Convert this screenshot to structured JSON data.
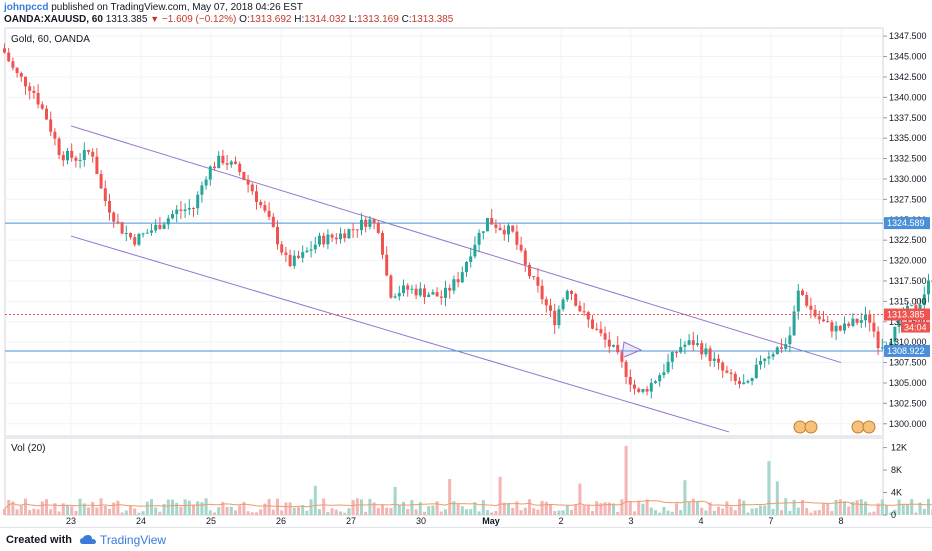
{
  "header": {
    "author": "johnpccd",
    "published": "published on TradingView.com, May 07, 2018 04:26 EST",
    "symbol": "OANDA:XAUUSD, 60",
    "last": "1313.385",
    "change": "−1.609 (−0.12%)",
    "o_label": "O:",
    "o_value": "1313.692",
    "h_label": "H:",
    "h_value": "1314.032",
    "l_label": "L:",
    "l_value": "1313.169",
    "c_label": "C:",
    "c_value": "1313.385"
  },
  "legend": {
    "main": "Gold, 60, OANDA",
    "volume": "Vol (20)"
  },
  "footer": {
    "created": "Created with",
    "brand": "TradingView"
  },
  "colors": {
    "up": "#26a69a",
    "down": "#ef5350",
    "hline": "#4a90d9",
    "channel": "#9575cd",
    "lastPrice": "#ef5350",
    "volAvg": "#ef9a6a"
  },
  "chart_data": {
    "type": "candlestick",
    "title": "Gold, 60, OANDA",
    "y_ticks": [
      "1347.500",
      "1345.000",
      "1342.500",
      "1340.000",
      "1337.500",
      "1335.000",
      "1332.500",
      "1330.000",
      "1327.500",
      "1325.000",
      "1322.500",
      "1320.000",
      "1317.500",
      "1315.000",
      "1312.500",
      "1310.000",
      "1307.500",
      "1305.000",
      "1302.500",
      "1300.000"
    ],
    "x_ticks": [
      "23",
      "24",
      "25",
      "26",
      "27",
      "30",
      "May",
      "2",
      "3",
      "4",
      "7",
      "8"
    ],
    "ylim": [
      1298.5,
      1348.5
    ],
    "horizontal_levels": [
      {
        "price": 1324.589,
        "label": "1324.589"
      },
      {
        "price": 1308.922,
        "label": "1308.922"
      }
    ],
    "last_price": {
      "price": 1313.385,
      "label": "1313.385",
      "countdown": "34:04"
    },
    "channel": {
      "upper": [
        {
          "x": 0.0,
          "y": 1336.5
        },
        {
          "x": 11.0,
          "y": 1307.5
        }
      ],
      "lower": [
        {
          "x": 0.0,
          "y": 1323.0
        },
        {
          "x": 9.4,
          "y": 1299.0
        }
      ]
    },
    "volume": {
      "title": "Vol (20)",
      "y_ticks": [
        "12K",
        "8K",
        "4K",
        "0"
      ],
      "ylim": [
        0,
        13000
      ],
      "spikes": [
        {
          "x": 3.5,
          "value": 5200
        },
        {
          "x": 4.65,
          "value": 5000
        },
        {
          "x": 7.95,
          "value": 12300
        },
        {
          "x": 8.8,
          "value": 6200
        },
        {
          "x": 9.95,
          "value": 9600
        },
        {
          "x": 10.1,
          "value": 6000
        },
        {
          "x": 6.15,
          "value": 6800
        },
        {
          "x": 5.4,
          "value": 6400
        },
        {
          "x": 7.25,
          "value": 5600
        }
      ]
    },
    "series_path": [
      {
        "x": -0.95,
        "y": 1345.5
      },
      {
        "x": -0.8,
        "y": 1343.0
      },
      {
        "x": -0.55,
        "y": 1341.0
      },
      {
        "x": -0.35,
        "y": 1337.5
      },
      {
        "x": -0.15,
        "y": 1333.0
      },
      {
        "x": 0.1,
        "y": 1332.5
      },
      {
        "x": 0.3,
        "y": 1333.5
      },
      {
        "x": 0.45,
        "y": 1328.0
      },
      {
        "x": 0.7,
        "y": 1324.0
      },
      {
        "x": 0.9,
        "y": 1322.5
      },
      {
        "x": 1.2,
        "y": 1324.0
      },
      {
        "x": 1.5,
        "y": 1326.0
      },
      {
        "x": 1.75,
        "y": 1326.5
      },
      {
        "x": 1.95,
        "y": 1331.0
      },
      {
        "x": 2.15,
        "y": 1332.5
      },
      {
        "x": 2.4,
        "y": 1331.0
      },
      {
        "x": 2.6,
        "y": 1328.5
      },
      {
        "x": 2.85,
        "y": 1324.5
      },
      {
        "x": 3.1,
        "y": 1319.5
      },
      {
        "x": 3.3,
        "y": 1320.5
      },
      {
        "x": 3.55,
        "y": 1322.5
      },
      {
        "x": 3.8,
        "y": 1323.0
      },
      {
        "x": 4.05,
        "y": 1324.0
      },
      {
        "x": 4.25,
        "y": 1325.0
      },
      {
        "x": 4.4,
        "y": 1324.0
      },
      {
        "x": 4.55,
        "y": 1316.0
      },
      {
        "x": 4.8,
        "y": 1316.5
      },
      {
        "x": 5.1,
        "y": 1316.0
      },
      {
        "x": 5.3,
        "y": 1315.5
      },
      {
        "x": 5.55,
        "y": 1318.0
      },
      {
        "x": 5.75,
        "y": 1322.0
      },
      {
        "x": 5.95,
        "y": 1325.0
      },
      {
        "x": 6.15,
        "y": 1324.0
      },
      {
        "x": 6.3,
        "y": 1323.5
      },
      {
        "x": 6.5,
        "y": 1319.0
      },
      {
        "x": 6.7,
        "y": 1316.0
      },
      {
        "x": 6.9,
        "y": 1312.5
      },
      {
        "x": 7.1,
        "y": 1317.0
      },
      {
        "x": 7.3,
        "y": 1313.5
      },
      {
        "x": 7.55,
        "y": 1311.0
      },
      {
        "x": 7.75,
        "y": 1309.0
      },
      {
        "x": 7.95,
        "y": 1306.0
      },
      {
        "x": 8.1,
        "y": 1303.5
      },
      {
        "x": 8.3,
        "y": 1305.0
      },
      {
        "x": 8.5,
        "y": 1307.0
      },
      {
        "x": 8.7,
        "y": 1309.5
      },
      {
        "x": 8.9,
        "y": 1310.0
      },
      {
        "x": 9.1,
        "y": 1308.5
      },
      {
        "x": 9.3,
        "y": 1306.5
      },
      {
        "x": 9.5,
        "y": 1305.0
      },
      {
        "x": 9.7,
        "y": 1304.5
      },
      {
        "x": 9.85,
        "y": 1308.0
      },
      {
        "x": 10.05,
        "y": 1309.0
      },
      {
        "x": 10.25,
        "y": 1310.0
      },
      {
        "x": 10.4,
        "y": 1316.5
      },
      {
        "x": 10.6,
        "y": 1313.5
      },
      {
        "x": 10.8,
        "y": 1312.0
      },
      {
        "x": 11.0,
        "y": 1311.5
      },
      {
        "x": 11.2,
        "y": 1312.5
      },
      {
        "x": 11.4,
        "y": 1313.0
      },
      {
        "x": 11.55,
        "y": 1309.5
      },
      {
        "x": 11.75,
        "y": 1311.0
      },
      {
        "x": 11.9,
        "y": 1313.5
      },
      {
        "x": 12.1,
        "y": 1314.5
      },
      {
        "x": 12.3,
        "y": 1318.0
      },
      {
        "x": 12.45,
        "y": 1317.0
      },
      {
        "x": 12.6,
        "y": 1314.5
      },
      {
        "x": 12.75,
        "y": 1313.4
      }
    ]
  }
}
